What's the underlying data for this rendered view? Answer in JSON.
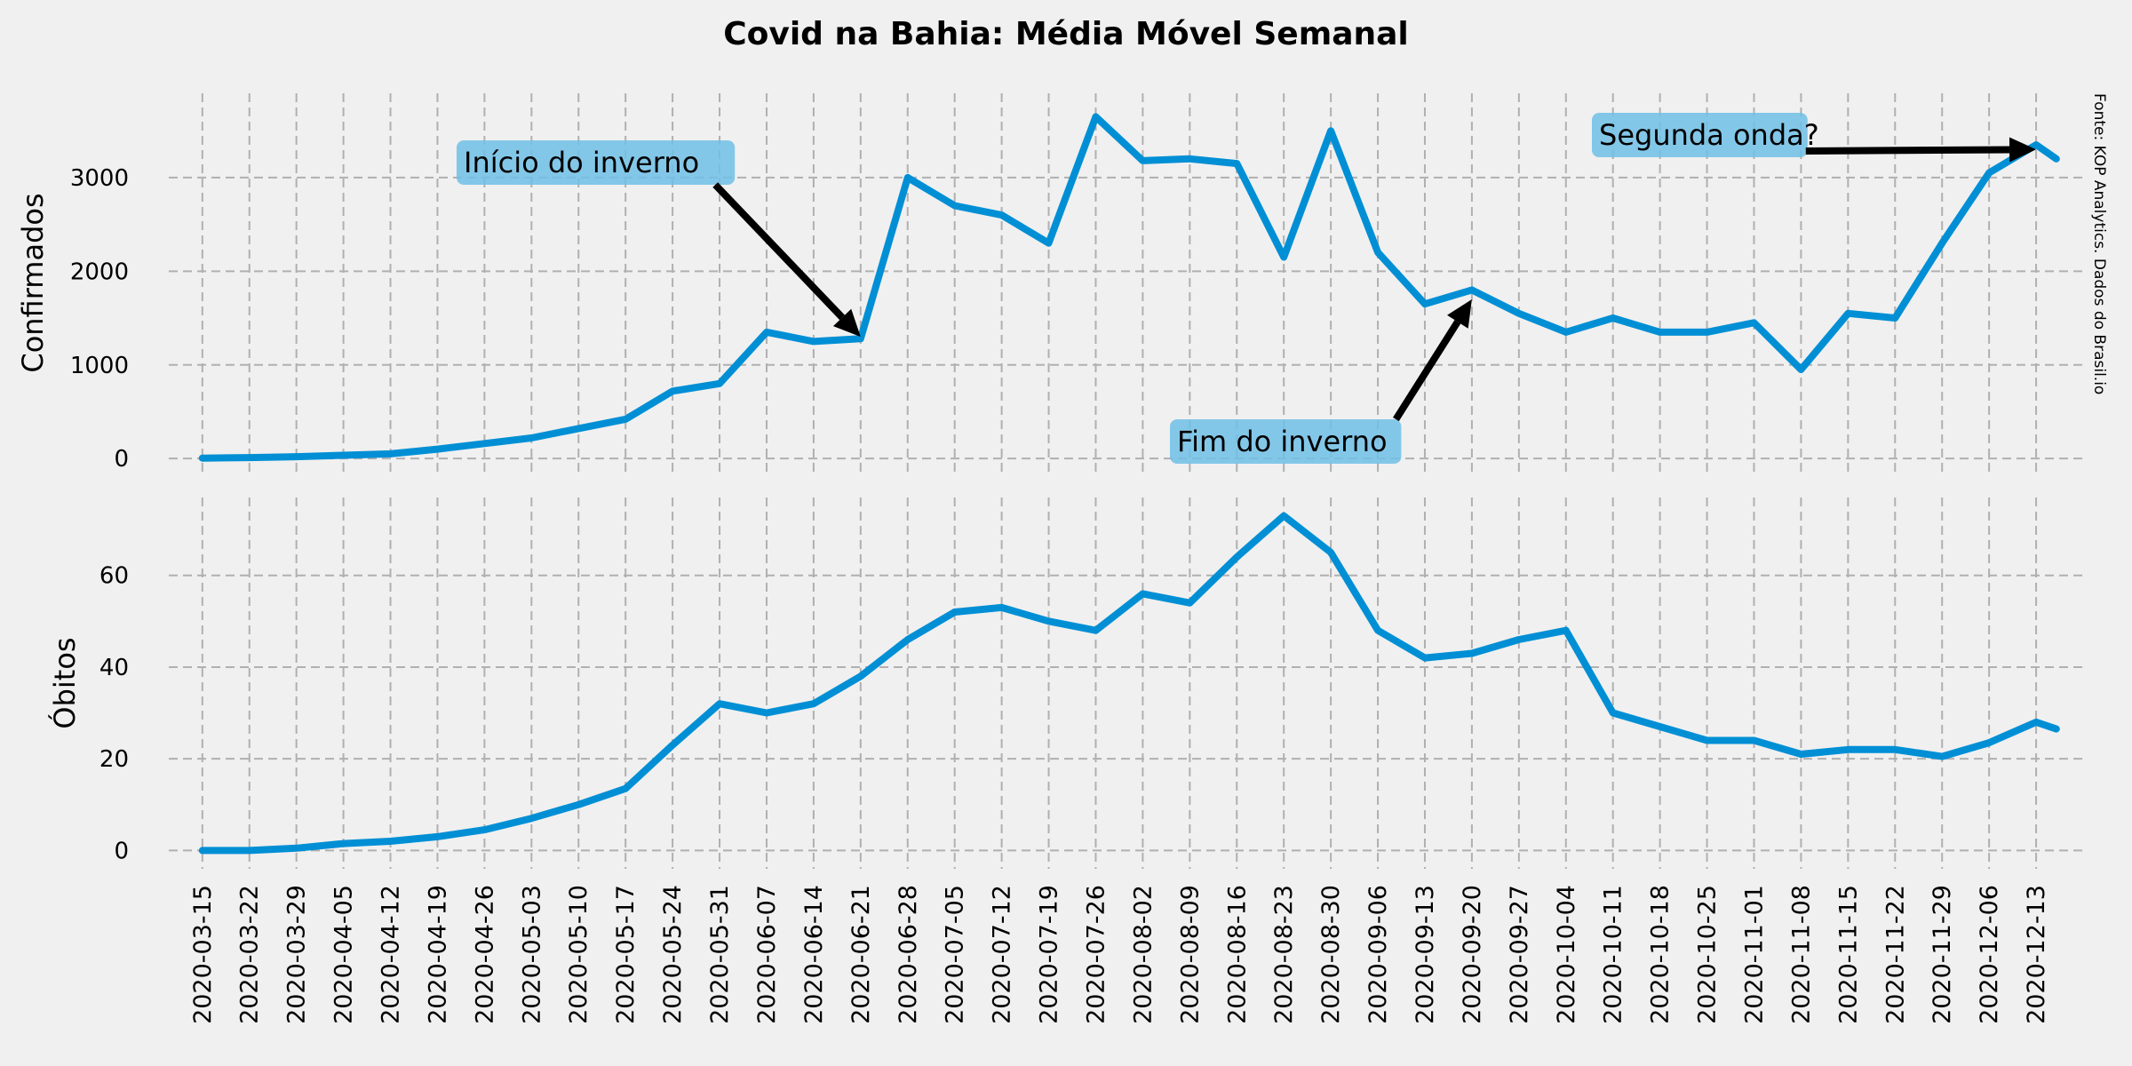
{
  "title": "Covid na Bahia: Média Móvel Semanal",
  "source": "Fonte: KOP Analytics. Dados do Brasil.io",
  "colors": {
    "line": "#008fd5",
    "background": "#f0f0f0",
    "grid": "#b0b0b0",
    "annotation_box": "#70bfe6",
    "arrow": "#000000"
  },
  "chart_data": [
    {
      "type": "line",
      "ylabel": "Confirmados",
      "ylim": [
        -150,
        3900
      ],
      "yticks": [
        0,
        1000,
        2000,
        3000
      ],
      "grid": true,
      "x": [
        "2020-03-15",
        "2020-03-22",
        "2020-03-29",
        "2020-04-05",
        "2020-04-12",
        "2020-04-19",
        "2020-04-26",
        "2020-05-03",
        "2020-05-10",
        "2020-05-17",
        "2020-05-24",
        "2020-05-31",
        "2020-06-07",
        "2020-06-14",
        "2020-06-21",
        "2020-06-28",
        "2020-07-05",
        "2020-07-12",
        "2020-07-19",
        "2020-07-26",
        "2020-08-02",
        "2020-08-09",
        "2020-08-16",
        "2020-08-23",
        "2020-08-30",
        "2020-09-06",
        "2020-09-13",
        "2020-09-20",
        "2020-09-27",
        "2020-10-04",
        "2020-10-11",
        "2020-10-18",
        "2020-10-25",
        "2020-11-01",
        "2020-11-08",
        "2020-11-15",
        "2020-11-22",
        "2020-11-29",
        "2020-12-06",
        "2020-12-13",
        "2020-12-16"
      ],
      "series": [
        {
          "values": [
            5,
            10,
            20,
            35,
            50,
            100,
            160,
            220,
            320,
            420,
            720,
            800,
            1350,
            1250,
            1280,
            3000,
            2700,
            2600,
            2300,
            3650,
            3180,
            3200,
            3150,
            2150,
            3500,
            2200,
            1650,
            1800,
            1550,
            1350,
            1500,
            1350,
            1350,
            1450,
            950,
            1550,
            1500,
            2300,
            3050,
            3350,
            3200
          ]
        }
      ],
      "annotations": [
        {
          "text": "Início do inverno",
          "target": [
            "2020-06-21",
            1300
          ]
        },
        {
          "text": "Fim do inverno",
          "target": [
            "2020-09-20",
            1700
          ]
        },
        {
          "text": "Segunda onda?",
          "target": [
            "2020-12-13",
            3300
          ]
        }
      ]
    },
    {
      "type": "line",
      "ylabel": "Óbitos",
      "ylim": [
        -4,
        77
      ],
      "yticks": [
        0,
        20,
        40,
        60
      ],
      "grid": true,
      "xtick_labels": [
        "2020-03-15",
        "2020-03-22",
        "2020-03-29",
        "2020-04-05",
        "2020-04-12",
        "2020-04-19",
        "2020-04-26",
        "2020-05-03",
        "2020-05-10",
        "2020-05-17",
        "2020-05-24",
        "2020-05-31",
        "2020-06-07",
        "2020-06-14",
        "2020-06-21",
        "2020-06-28",
        "2020-07-05",
        "2020-07-12",
        "2020-07-19",
        "2020-07-26",
        "2020-08-02",
        "2020-08-09",
        "2020-08-16",
        "2020-08-23",
        "2020-08-30",
        "2020-09-06",
        "2020-09-13",
        "2020-09-20",
        "2020-09-27",
        "2020-10-04",
        "2020-10-11",
        "2020-10-18",
        "2020-10-25",
        "2020-11-01",
        "2020-11-08",
        "2020-11-15",
        "2020-11-22",
        "2020-11-29",
        "2020-12-06",
        "2020-12-13"
      ],
      "x": [
        "2020-03-15",
        "2020-03-22",
        "2020-03-29",
        "2020-04-05",
        "2020-04-12",
        "2020-04-19",
        "2020-04-26",
        "2020-05-03",
        "2020-05-10",
        "2020-05-17",
        "2020-05-24",
        "2020-05-31",
        "2020-06-07",
        "2020-06-14",
        "2020-06-21",
        "2020-06-28",
        "2020-07-05",
        "2020-07-12",
        "2020-07-19",
        "2020-07-26",
        "2020-08-02",
        "2020-08-09",
        "2020-08-16",
        "2020-08-23",
        "2020-08-30",
        "2020-09-06",
        "2020-09-13",
        "2020-09-20",
        "2020-09-27",
        "2020-10-04",
        "2020-10-11",
        "2020-10-18",
        "2020-10-25",
        "2020-11-01",
        "2020-11-08",
        "2020-11-15",
        "2020-11-22",
        "2020-11-29",
        "2020-12-06",
        "2020-12-13",
        "2020-12-16"
      ],
      "series": [
        {
          "values": [
            0,
            0,
            0.5,
            1.5,
            2,
            3,
            4.5,
            7,
            10,
            13.5,
            23,
            32,
            30,
            32,
            38,
            46,
            52,
            53,
            50,
            48,
            56,
            54,
            64,
            73,
            65,
            48,
            42,
            43,
            46,
            48,
            30,
            27,
            24,
            24,
            21,
            22,
            22,
            20.5,
            23.5,
            28,
            26.5
          ]
        }
      ]
    }
  ]
}
